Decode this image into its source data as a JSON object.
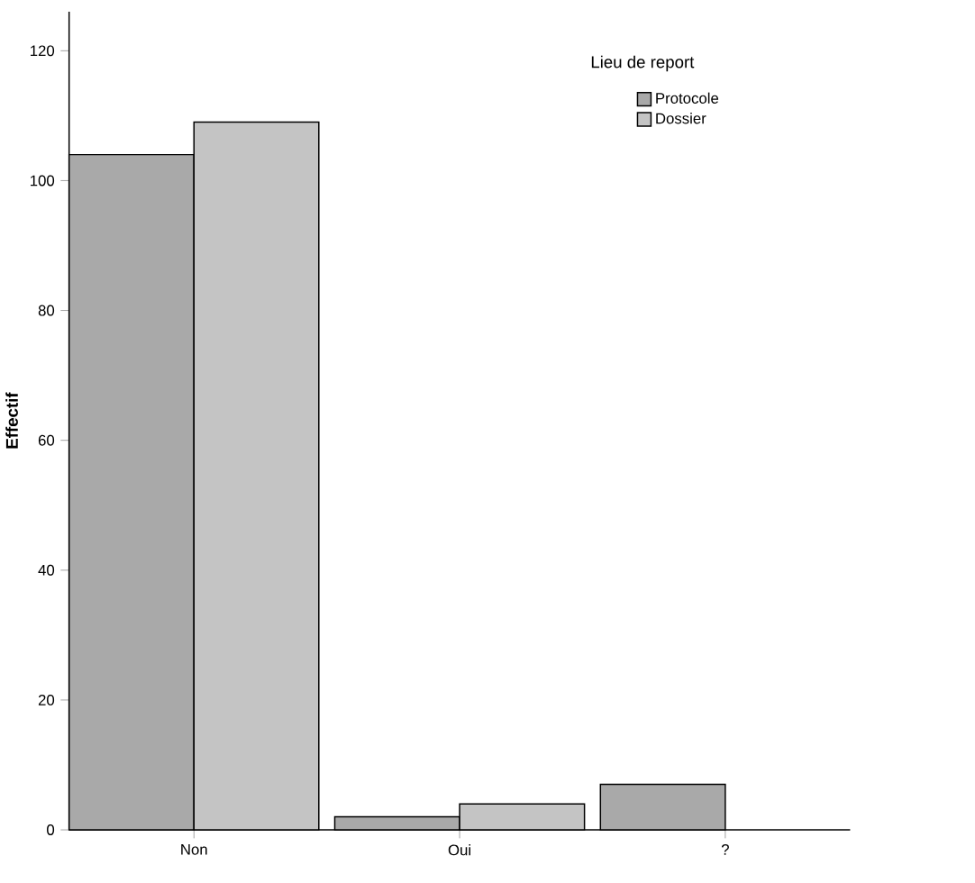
{
  "chart_data": {
    "type": "bar",
    "ylabel": "Effectif",
    "legend_title": "Lieu de report",
    "categories": [
      "Non",
      "Oui",
      "?"
    ],
    "series": [
      {
        "name": "Protocole",
        "color": "#a9a9a9",
        "values": [
          104,
          2,
          7
        ]
      },
      {
        "name": "Dossier",
        "color": "#c4c4c4",
        "values": [
          109,
          4,
          null
        ]
      }
    ],
    "ylim": [
      0,
      126
    ],
    "yticks": [
      0,
      20,
      40,
      60,
      80,
      100,
      120
    ],
    "grid": false,
    "legend": "top right"
  }
}
